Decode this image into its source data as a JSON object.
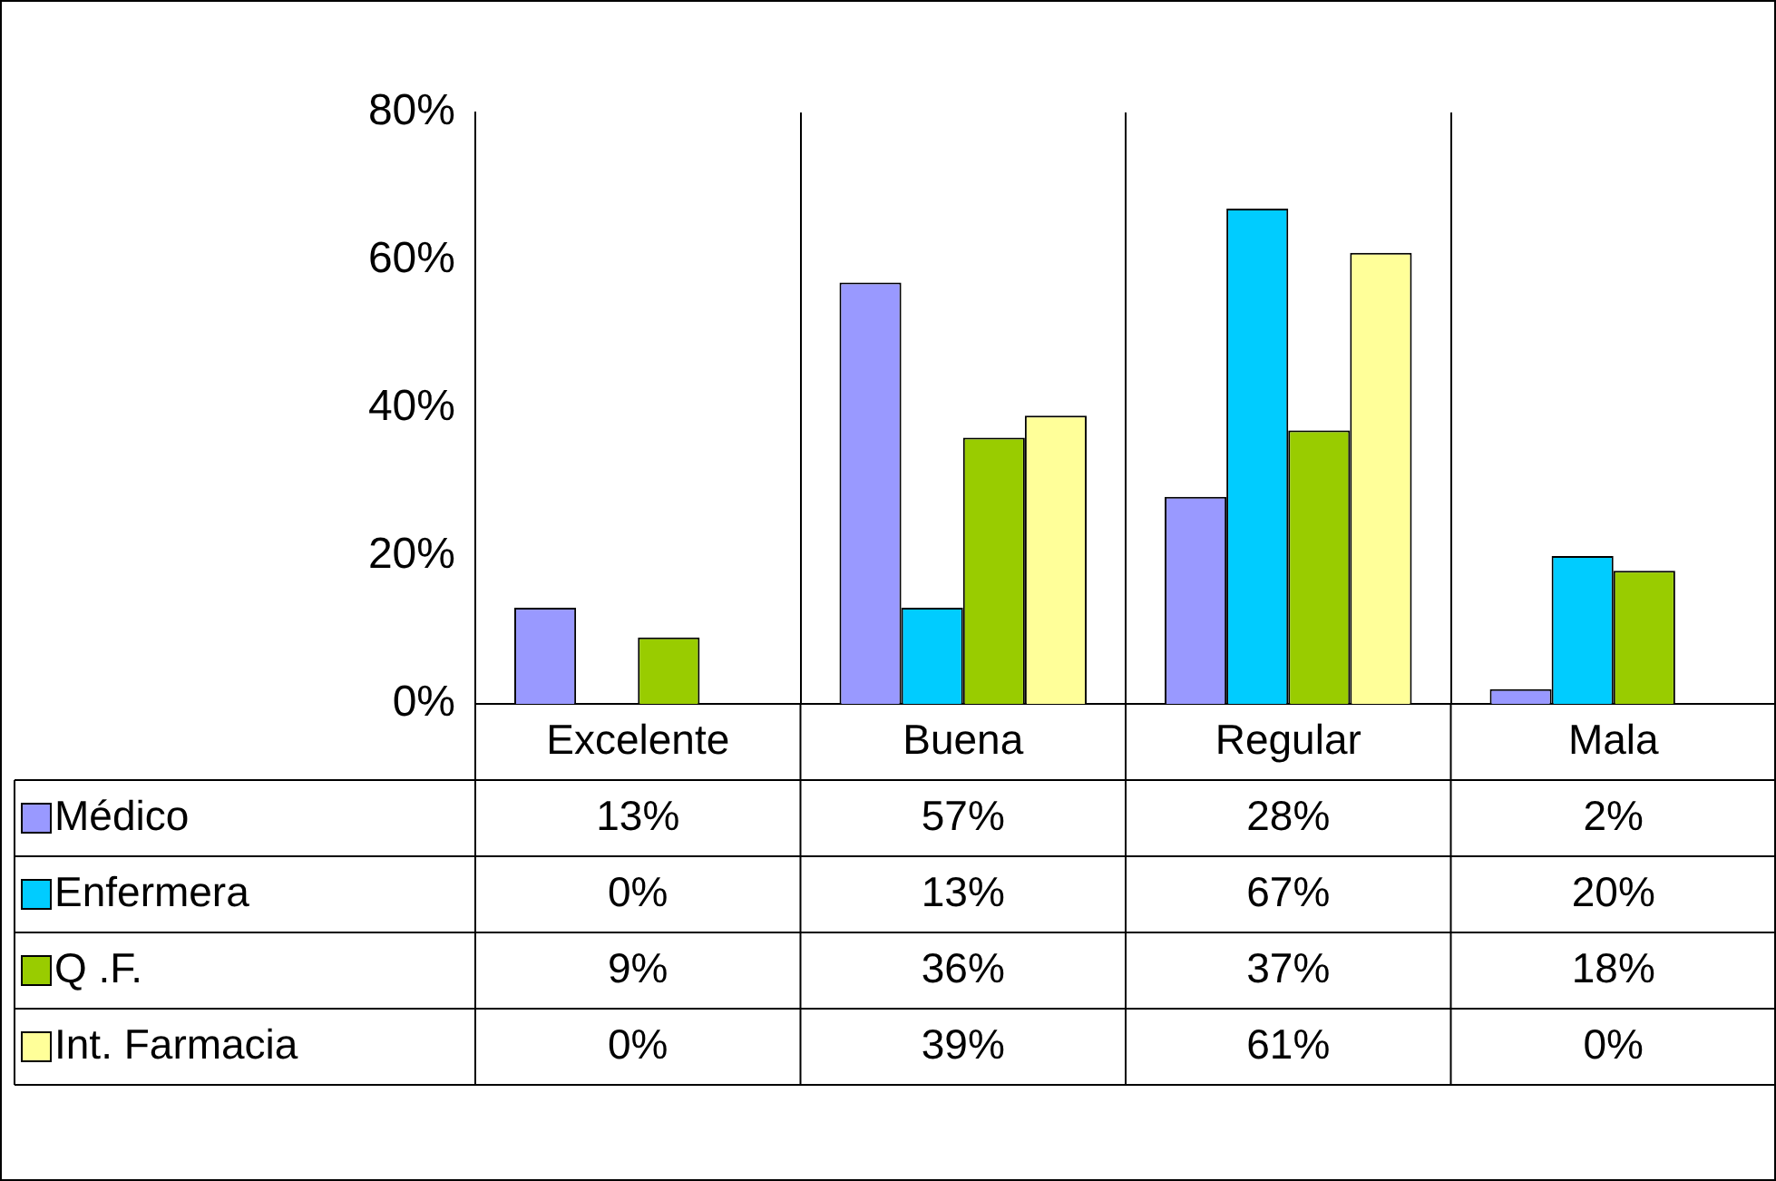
{
  "chart_data": {
    "type": "bar",
    "categories": [
      "Excelente",
      "Buena",
      "Regular",
      "Mala"
    ],
    "series": [
      {
        "name": "Médico",
        "color": "#9999ff",
        "values": [
          13,
          57,
          28,
          2
        ],
        "value_labels": [
          "13%",
          "57%",
          "28%",
          "2%"
        ]
      },
      {
        "name": "Enfermera",
        "color": "#00ccff",
        "values": [
          0,
          13,
          67,
          20
        ],
        "value_labels": [
          "0%",
          "13%",
          "67%",
          "20%"
        ]
      },
      {
        "name": "Q .F.",
        "color": "#99cc00",
        "values": [
          9,
          36,
          37,
          18
        ],
        "value_labels": [
          "9%",
          "36%",
          "37%",
          "18%"
        ]
      },
      {
        "name": "Int. Farmacia",
        "color": "#ffff99",
        "values": [
          0,
          39,
          61,
          0
        ],
        "value_labels": [
          "0%",
          "39%",
          "61%",
          "0%"
        ]
      }
    ],
    "ylim": [
      0,
      80
    ],
    "yticks": [
      {
        "value": 0,
        "label": "0%"
      },
      {
        "value": 20,
        "label": "20%"
      },
      {
        "value": 40,
        "label": "40%"
      },
      {
        "value": 60,
        "label": "60%"
      },
      {
        "value": 80,
        "label": "80%"
      }
    ],
    "grid": "x",
    "legend": "bottom"
  }
}
